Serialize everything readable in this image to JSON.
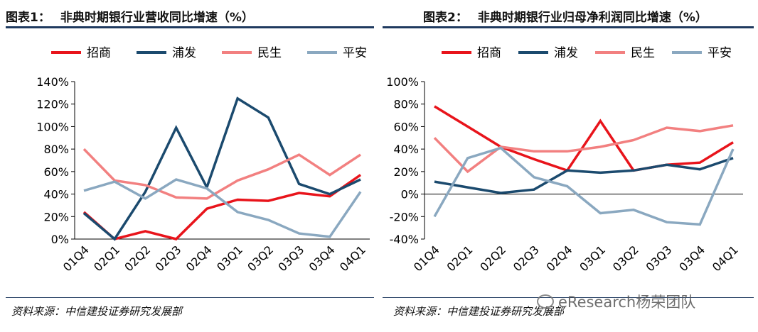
{
  "charts": [
    {
      "title_num": "图表1：",
      "title_text": "非典时期银行业营收同比增速（%）",
      "source": "资料来源：中信建投证券研究发展部"
    },
    {
      "title_num": "图表2：",
      "title_text": "非典时期银行业归母净利润同比增速（%）",
      "source": "资料来源：中信建投证券研究发展部"
    }
  ],
  "watermark": "eResearch杨荣团队",
  "chart_data": [
    {
      "type": "line",
      "title": "非典时期银行业营收同比增速（%）",
      "categories": [
        "01Q4",
        "02Q1",
        "02Q2",
        "02Q3",
        "02Q4",
        "03Q1",
        "03Q2",
        "03Q3",
        "03Q4",
        "04Q1"
      ],
      "ylim": [
        0,
        140
      ],
      "yticks": [
        0,
        20,
        40,
        60,
        80,
        100,
        120,
        140
      ],
      "grid": false,
      "legend": "top",
      "series": [
        {
          "name": "招商",
          "color": "#e8141b",
          "values": [
            24,
            0,
            7,
            0,
            27,
            35,
            34,
            41,
            38,
            57
          ]
        },
        {
          "name": "浦发",
          "color": "#1b4a6e",
          "values": [
            23,
            0,
            42,
            99,
            46,
            125,
            108,
            49,
            40,
            53
          ]
        },
        {
          "name": "民生",
          "color": "#f28080",
          "values": [
            80,
            52,
            48,
            37,
            36,
            52,
            62,
            75,
            57,
            75
          ]
        },
        {
          "name": "平安",
          "color": "#8aa8c0",
          "values": [
            43,
            51,
            36,
            53,
            45,
            24,
            17,
            5,
            2,
            42
          ]
        }
      ]
    },
    {
      "type": "line",
      "title": "非典时期银行业归母净利润同比增速（%）",
      "categories": [
        "01Q4",
        "02Q1",
        "02Q2",
        "02Q3",
        "02Q4",
        "03Q1",
        "03Q2",
        "03Q3",
        "03Q4",
        "04Q1"
      ],
      "ylim": [
        -40,
        100
      ],
      "yticks": [
        -40,
        -20,
        0,
        20,
        40,
        60,
        80,
        100
      ],
      "grid": false,
      "legend": "top",
      "series": [
        {
          "name": "招商",
          "color": "#e8141b",
          "values": [
            78,
            60,
            42,
            31,
            21,
            65,
            21,
            26,
            28,
            46
          ]
        },
        {
          "name": "浦发",
          "color": "#1b4a6e",
          "values": [
            11,
            6,
            1,
            4,
            21,
            19,
            21,
            26,
            22,
            32
          ]
        },
        {
          "name": "民生",
          "color": "#f28080",
          "values": [
            50,
            20,
            42,
            38,
            38,
            42,
            48,
            59,
            56,
            61
          ]
        },
        {
          "name": "平安",
          "color": "#8aa8c0",
          "values": [
            -20,
            32,
            41,
            15,
            7,
            -17,
            -14,
            -25,
            -27,
            40
          ]
        }
      ]
    }
  ]
}
